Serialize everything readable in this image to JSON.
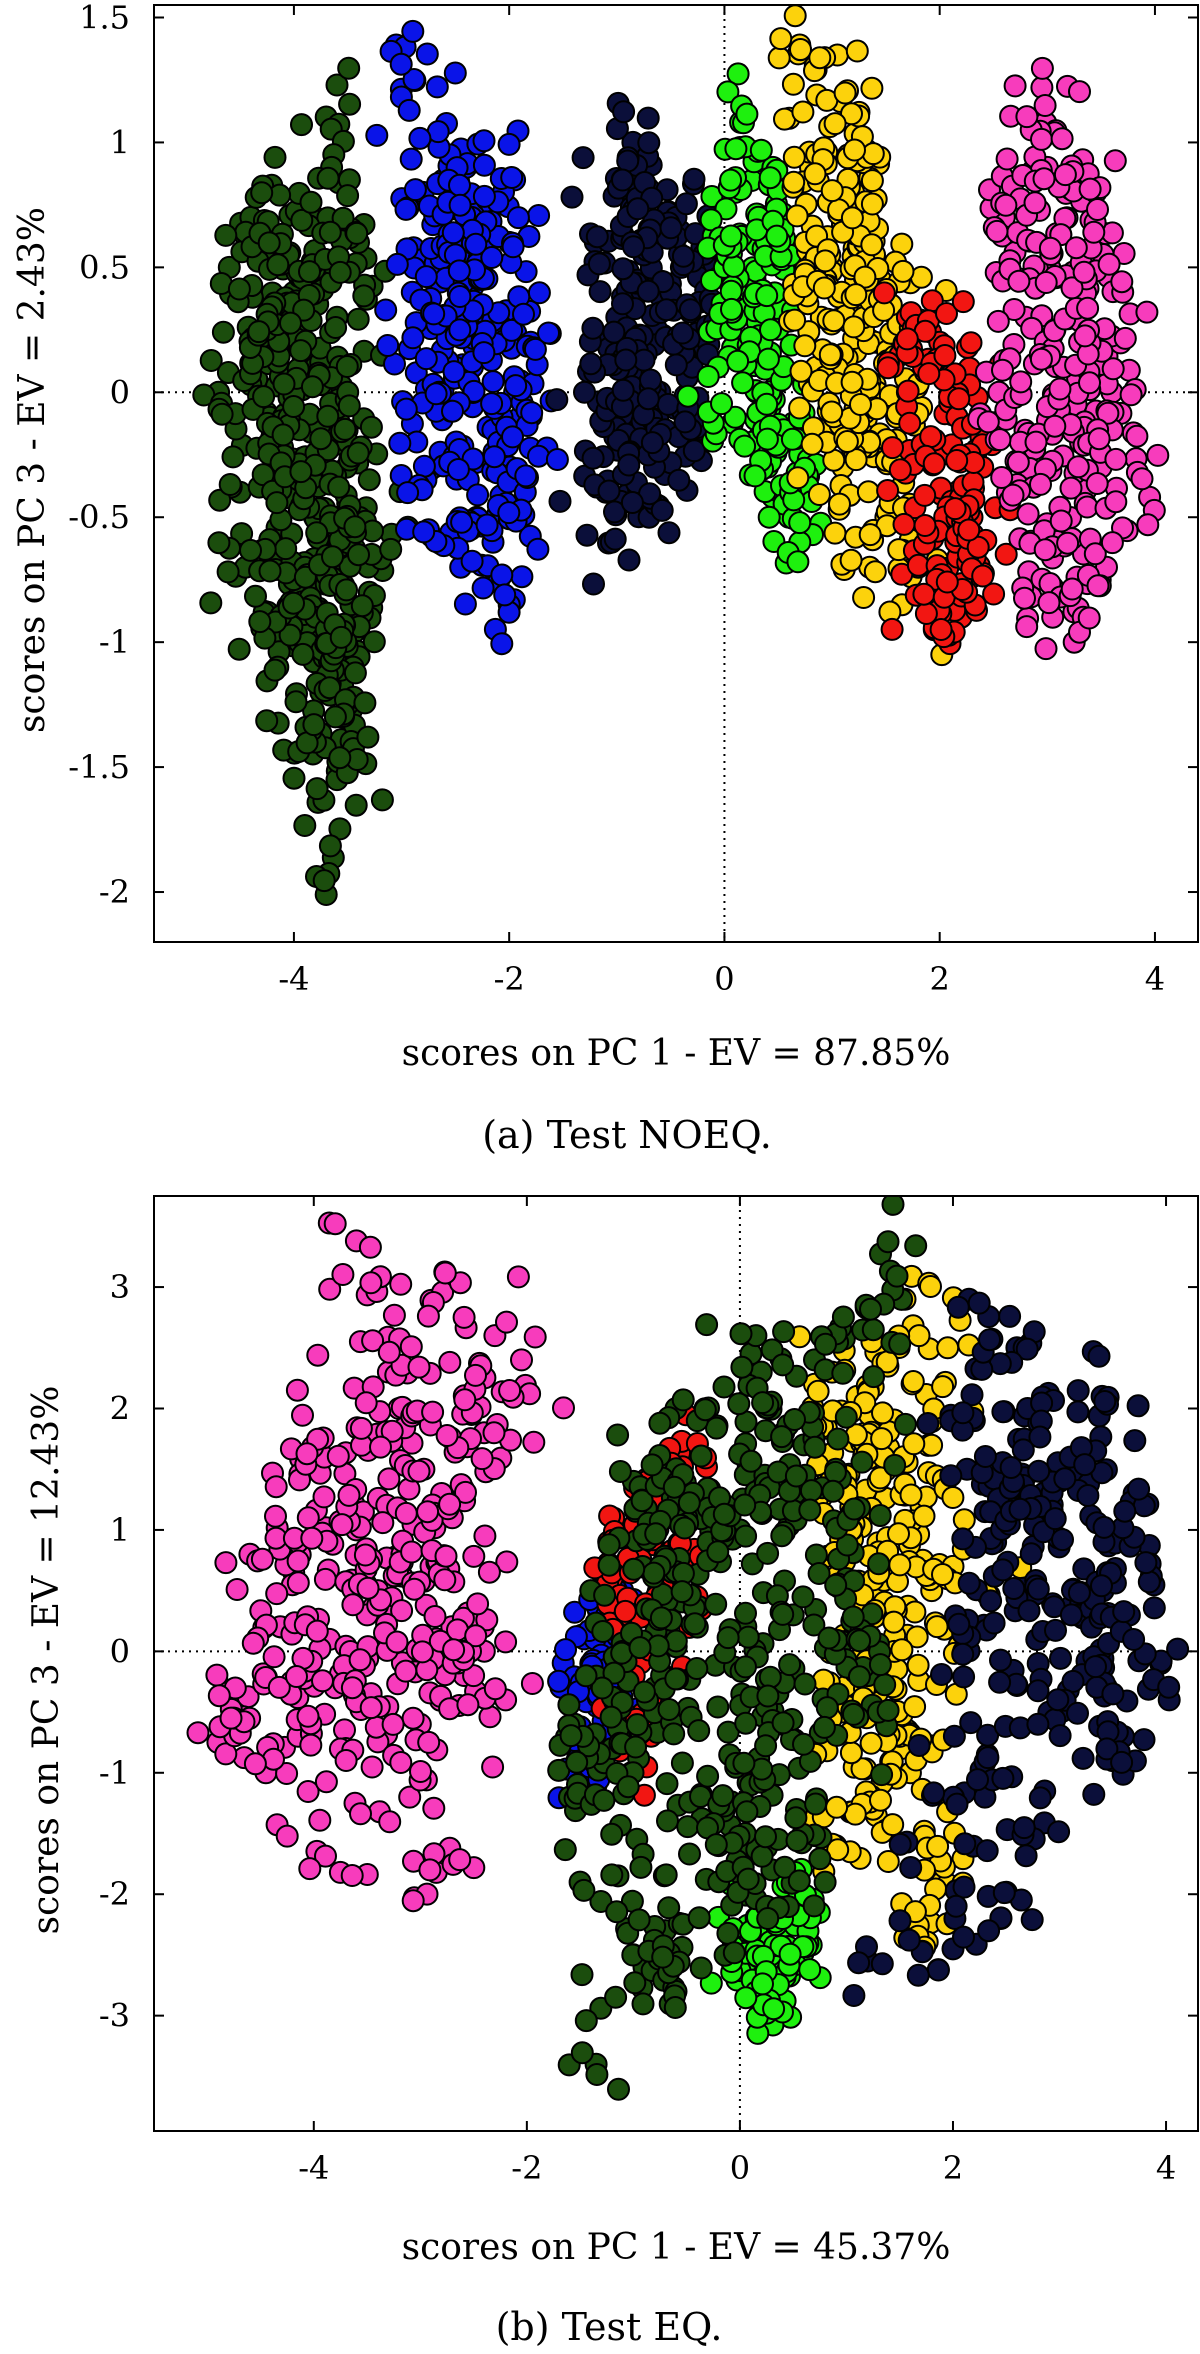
{
  "chart_data": [
    {
      "type": "scatter",
      "caption": "(a) Test NOEQ.",
      "xlabel": "scores on PC 1 - EV = 87.85%",
      "ylabel": "scores on PC 3 - EV = 2.43%",
      "xlim": [
        -5.3,
        4.4
      ],
      "ylim": [
        -2.2,
        1.55
      ],
      "xticks": [
        -4,
        -2,
        0,
        2,
        4
      ],
      "xtick_labels": [
        "-4",
        "-2",
        "0",
        "2",
        "4"
      ],
      "yticks": [
        -2,
        -1.5,
        -1,
        -0.5,
        0,
        0.5,
        1,
        1.5
      ],
      "ytick_labels": [
        "-2",
        "-1.5",
        "-1",
        "-0.5",
        "0",
        "0.5",
        "1",
        "1.5"
      ],
      "reference_lines": "dotted lines at x = 0 and y = 0",
      "grid": false,
      "legend": "none",
      "series": [
        {
          "color": "#1b4d0d",
          "x": [
            -4.6,
            -4.4,
            -4.3,
            -4.1,
            -4.0,
            -3.9,
            -3.8,
            -3.7,
            -3.6,
            -3.5,
            -3.4,
            -3.3,
            -4.5,
            -4.2,
            -3.95,
            -3.75,
            -3.55,
            -4.7,
            -3.85,
            -3.65,
            -3.45,
            -3.6,
            -3.7,
            -4.35,
            -4.05,
            -3.9,
            -3.8,
            -3.5,
            -3.3,
            -4.15,
            -3.95,
            -4.25,
            -3.6,
            -3.65,
            -3.7,
            -3.5,
            -3.4,
            -4.45
          ],
          "y": [
            0.5,
            0.7,
            0.2,
            -0.1,
            0.4,
            -0.3,
            0.1,
            -0.6,
            0.3,
            -0.2,
            0.6,
            -0.8,
            -0.4,
            -0.9,
            -1.0,
            -1.2,
            -1.3,
            0.0,
            0.7,
            -0.5,
            -1.1,
            -1.55,
            -2.01,
            0.78,
            0.55,
            -0.7,
            -1.4,
            0.0,
            -0.35,
            -1.1,
            -0.15,
            0.25,
            1.23,
            0.9,
            -0.95,
            -1.25,
            -0.65,
            -0.7
          ]
        },
        {
          "color": "#0a14e8",
          "x": [
            -2.8,
            -2.6,
            -2.4,
            -2.2,
            -2.0,
            -1.9,
            -2.7,
            -2.5,
            -2.3,
            -2.1,
            -1.8,
            -2.9,
            -2.35,
            -2.15,
            -2.55,
            -2.0,
            -1.85,
            -2.45,
            -2.65,
            -3.05,
            -2.25,
            -1.95,
            -2.75,
            -2.5
          ],
          "y": [
            0.8,
            0.5,
            0.9,
            0.3,
            0.6,
            -0.1,
            -0.3,
            0.1,
            -0.5,
            -0.2,
            0.2,
            0.4,
            0.7,
            -0.6,
            0.95,
            -0.85,
            -0.4,
            -0.7,
            0.0,
            1.39,
            0.35,
            0.85,
            -0.55,
            0.55
          ]
        },
        {
          "color": "#0b0f3a",
          "x": [
            -1.2,
            -1.0,
            -0.8,
            -0.6,
            -0.4,
            -0.2,
            -1.1,
            -0.9,
            -0.7,
            -0.5,
            -0.3,
            -1.3,
            -0.85,
            -0.65,
            -0.45,
            -1.05,
            -0.75,
            -0.55,
            -0.35,
            -0.95
          ],
          "y": [
            0.6,
            0.3,
            0.8,
            0.0,
            0.5,
            -0.2,
            -0.4,
            0.1,
            -0.5,
            0.4,
            0.2,
            0.0,
            1.0,
            -0.3,
            0.7,
            -0.6,
            0.55,
            -0.15,
            0.35,
            0.85
          ]
        },
        {
          "color": "#1ef00e",
          "x": [
            0.1,
            0.2,
            0.3,
            0.4,
            0.5,
            0.6,
            0.15,
            0.35,
            0.25,
            0.45,
            0.0,
            0.55,
            0.7,
            0.1,
            0.3
          ],
          "y": [
            0.8,
            0.4,
            0.0,
            -0.3,
            0.6,
            -0.5,
            1.08,
            0.2,
            -0.2,
            0.9,
            0.5,
            -0.15,
            -0.6,
            -0.1,
            0.65
          ]
        },
        {
          "color": "#fcd20c",
          "x": [
            0.8,
            1.0,
            1.2,
            1.4,
            1.6,
            0.9,
            1.1,
            1.3,
            1.5,
            1.7,
            0.7,
            1.25,
            1.05,
            0.85,
            1.45,
            1.35,
            1.15,
            0.95,
            1.55,
            0.75,
            1.65,
            1.0
          ],
          "y": [
            0.9,
            0.5,
            0.8,
            0.2,
            -0.1,
            0.3,
            -0.3,
            0.6,
            -0.5,
            0.0,
            1.39,
            1.12,
            1.35,
            0.1,
            0.45,
            -0.7,
            0.95,
            -0.2,
            0.35,
            0.6,
            -0.85,
            0.15
          ]
        },
        {
          "color": "#f21612",
          "x": [
            1.7,
            1.9,
            2.1,
            2.3,
            1.8,
            2.0,
            2.2,
            2.4,
            1.95,
            2.15,
            1.85,
            2.25
          ],
          "y": [
            0.3,
            -0.2,
            0.0,
            -0.5,
            -0.7,
            0.2,
            -0.9,
            -0.3,
            -0.95,
            -0.6,
            0.1,
            -0.8
          ]
        },
        {
          "color": "#f73cbc",
          "x": [
            2.6,
            2.8,
            3.0,
            3.2,
            3.4,
            3.6,
            2.7,
            2.9,
            3.1,
            3.3,
            3.5,
            3.7,
            2.55,
            3.05,
            2.95,
            3.25,
            2.85,
            3.45,
            3.95,
            3.15,
            2.75,
            3.55
          ],
          "y": [
            0.7,
            0.3,
            0.9,
            -0.1,
            0.5,
            0.0,
            -0.4,
            0.6,
            -0.6,
            0.2,
            -0.3,
            0.4,
            0.0,
            -0.9,
            1.22,
            -1.0,
            1.05,
            0.8,
            -0.42,
            0.1,
            -0.2,
            -0.7
          ]
        }
      ]
    },
    {
      "type": "scatter",
      "caption": "(b) Test EQ.",
      "xlabel": "scores on PC 1 - EV = 45.37%",
      "ylabel": "scores on PC 3 - EV = 12.43%",
      "xlim": [
        -5.5,
        4.3
      ],
      "ylim": [
        -3.95,
        3.75
      ],
      "xticks": [
        -4,
        -2,
        0,
        2,
        4
      ],
      "xtick_labels": [
        "-4",
        "-2",
        "0",
        "2",
        "4"
      ],
      "yticks": [
        -3,
        -2,
        -1,
        0,
        1,
        2,
        3
      ],
      "ytick_labels": [
        "-3",
        "-2",
        "-1",
        "0",
        "1",
        "2",
        "3"
      ],
      "reference_lines": "dotted lines at x = 0 and y = 0",
      "grid": false,
      "legend": "none",
      "series": [
        {
          "color": "#f73cbc",
          "x": [
            -4.6,
            -4.3,
            -4.0,
            -3.8,
            -3.6,
            -3.4,
            -3.2,
            -3.0,
            -2.8,
            -2.6,
            -2.4,
            -2.2,
            -4.45,
            -4.15,
            -3.9,
            -3.7,
            -3.5,
            -3.3,
            -3.1,
            -2.9,
            -2.7,
            -2.5,
            -2.3,
            -3.6,
            -2.9,
            -4.9,
            -3.75,
            -2.85,
            -2.05,
            -4.75
          ],
          "y": [
            0.8,
            0.2,
            1.5,
            -0.3,
            1.0,
            0.5,
            2.0,
            -0.6,
            1.3,
            0.0,
            1.8,
            -0.4,
            -1.0,
            0.9,
            1.6,
            -0.8,
            0.3,
            2.3,
            -1.2,
            0.7,
            1.1,
            -0.2,
            2.6,
            3.38,
            2.89,
            -0.75,
            -1.82,
            -1.82,
            2.4,
            -0.55
          ]
        },
        {
          "color": "#0a14e8",
          "x": [
            -1.4,
            -1.3,
            -1.2,
            -1.1,
            -1.35,
            -1.25
          ],
          "y": [
            -0.1,
            0.3,
            -0.6,
            0.5,
            -1.1,
            -0.3
          ]
        },
        {
          "color": "#f21612",
          "x": [
            -1.2,
            -1.0,
            -0.8,
            -0.6,
            -0.4,
            -1.1,
            -0.9,
            -0.7
          ],
          "y": [
            0.6,
            -0.2,
            1.2,
            0.4,
            1.7,
            -0.8,
            0.9,
            1.4
          ]
        },
        {
          "color": "#1ef00e",
          "x": [
            0.0,
            0.2,
            0.3,
            0.5,
            0.1,
            0.4,
            0.25
          ],
          "y": [
            -2.3,
            -2.6,
            -2.9,
            -2.1,
            -2.45,
            -2.2,
            -2.98
          ]
        },
        {
          "color": "#fcd20c",
          "x": [
            0.8,
            1.0,
            1.2,
            1.4,
            1.6,
            1.8,
            0.9,
            1.1,
            1.3,
            1.5,
            1.7,
            1.9,
            1.55,
            1.95,
            1.25,
            0.7,
            1.05,
            1.45,
            2.0,
            1.65,
            1.35,
            0.95
          ],
          "y": [
            1.5,
            0.8,
            -0.2,
            1.9,
            -1.0,
            0.5,
            -1.6,
            2.1,
            0.3,
            -0.7,
            1.2,
            -1.9,
            2.9,
            2.5,
            -1.3,
            2.2,
            1.0,
            0.0,
            0.7,
            -2.3,
            1.6,
            -0.5
          ]
        },
        {
          "color": "#0b0f3a",
          "x": [
            2.2,
            2.4,
            2.6,
            2.8,
            3.0,
            3.2,
            3.4,
            3.6,
            2.3,
            2.5,
            2.7,
            2.9,
            3.1,
            3.3,
            3.5,
            3.7,
            2.1,
            2.0,
            1.2,
            2.45,
            3.85,
            3.95,
            2.15
          ],
          "y": [
            1.9,
            0.9,
            2.5,
            -0.1,
            1.4,
            0.4,
            2.1,
            -0.7,
            -1.2,
            1.1,
            2.0,
            -0.5,
            1.6,
            0.2,
            -0.9,
            1.3,
            0.0,
            -2.45,
            -2.55,
            -2.2,
            0.72,
            -0.1,
            2.9
          ]
        },
        {
          "color": "#1b4d0d",
          "x": [
            -1.6,
            -1.4,
            -1.2,
            -1.0,
            -0.8,
            -0.6,
            -0.4,
            -0.2,
            0.0,
            0.2,
            0.4,
            0.6,
            0.8,
            1.0,
            1.2,
            -1.5,
            -1.1,
            -0.7,
            -0.3,
            0.1,
            0.5,
            0.9,
            1.3,
            -0.9,
            -0.5,
            0.3,
            0.7,
            1.1,
            -1.35,
            -0.6,
            0.15,
            1.65,
            -0.4,
            0.25,
            1.35,
            -1.55,
            -0.75,
            0.05
          ],
          "y": [
            -1.2,
            0.5,
            -0.8,
            1.4,
            -0.3,
            2.0,
            0.2,
            -1.6,
            1.0,
            2.3,
            -0.6,
            1.7,
            -1.9,
            0.6,
            -0.2,
            -1.9,
            0.0,
            -2.3,
            0.9,
            -1.1,
            0.3,
            1.5,
            -0.5,
            -2.6,
            1.1,
            -1.8,
            2.4,
            0.1,
            -3.4,
            -2.8,
            2.6,
            3.34,
            1.9,
            -2.1,
            2.86,
            -0.6,
            0.7,
            -1.5
          ]
        }
      ]
    }
  ]
}
